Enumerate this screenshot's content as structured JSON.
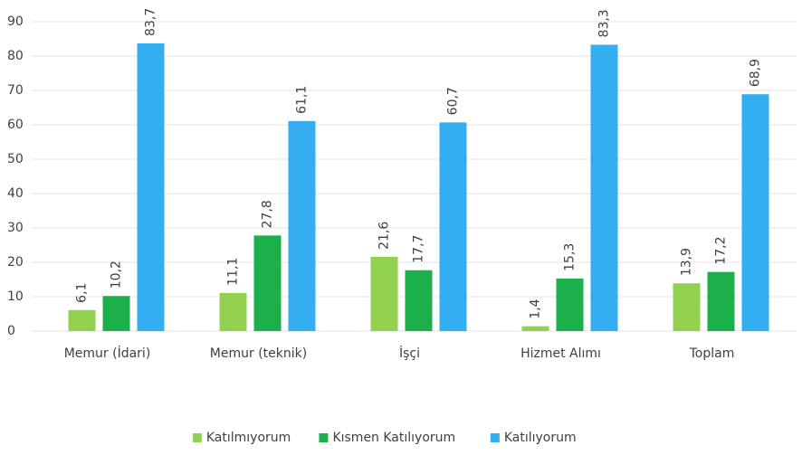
{
  "chart_data": {
    "type": "bar",
    "categories": [
      "Memur (İdari)",
      "Memur (teknik)",
      "İşçi",
      "Hizmet Alımı",
      "Toplam"
    ],
    "series": [
      {
        "name": "Katılmıyorum",
        "color": "#92d050",
        "values": [
          6.1,
          11.1,
          21.6,
          1.4,
          13.9
        ],
        "value_labels": [
          "6,1",
          "11,1",
          "21,6",
          "1,4",
          "13,9"
        ]
      },
      {
        "name": "Kısmen Katılıyorum",
        "color": "#1bb04a",
        "values": [
          10.2,
          27.8,
          17.7,
          15.3,
          17.2
        ],
        "value_labels": [
          "10,2",
          "27,8",
          "17,7",
          "15,3",
          "17,2"
        ]
      },
      {
        "name": "Katılıyorum",
        "color": "#33aef0",
        "values": [
          83.7,
          61.1,
          60.7,
          83.3,
          68.9
        ],
        "value_labels": [
          "83,7",
          "61,1",
          "60,7",
          "83,3",
          "68,9"
        ]
      }
    ],
    "ylim": [
      0,
      90
    ],
    "yticks": [
      0,
      10,
      20,
      30,
      40,
      50,
      60,
      70,
      80,
      90
    ],
    "grid": true,
    "legend": "bottom"
  }
}
